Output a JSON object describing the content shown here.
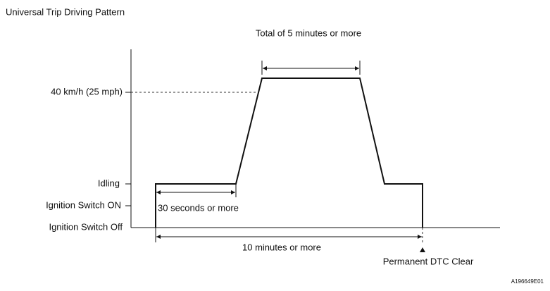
{
  "header": {
    "title": "Universal Trip Driving Pattern"
  },
  "levels": [
    "40 km/h (25 mph)",
    "Idling",
    "Ignition Switch ON",
    "Ignition Switch Off"
  ],
  "annotations": {
    "total": "Total of 5 minutes or more",
    "idle": "30 seconds or more",
    "overall": "10 minutes or more",
    "clear": "Permanent DTC Clear"
  },
  "figure_id": "A196649E01"
}
